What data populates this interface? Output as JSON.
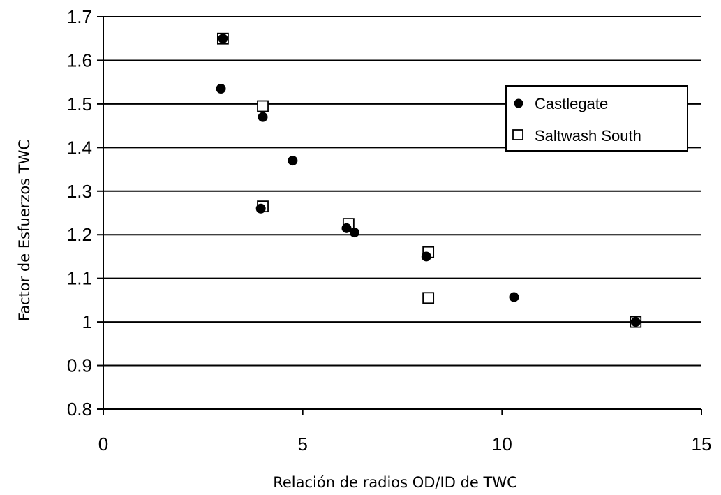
{
  "chart_data": {
    "type": "scatter",
    "title": "",
    "xlabel": "Relación de radios OD/ID de TWC",
    "ylabel": "Factor de Esfuerzos TWC",
    "xlim": [
      0,
      15
    ],
    "ylim": [
      0.8,
      1.7
    ],
    "x_ticks": [
      0,
      5,
      10,
      15
    ],
    "x_tick_labels": [
      "0",
      "5",
      "10",
      "15"
    ],
    "y_ticks": [
      0.8,
      0.9,
      1.0,
      1.1,
      1.2,
      1.3,
      1.4,
      1.5,
      1.6,
      1.7
    ],
    "y_tick_labels": [
      "0.8",
      "0.9",
      "1",
      "1.1",
      "1.2",
      "1.3",
      "1.4",
      "1.5",
      "1.6",
      "1.7"
    ],
    "grid": "horizontal",
    "legend_position": "right",
    "series": [
      {
        "name": "Castlegate",
        "marker": "filled-circle",
        "color": "#000000",
        "points": [
          {
            "x": 3.0,
            "y": 1.65
          },
          {
            "x": 2.95,
            "y": 1.535
          },
          {
            "x": 4.0,
            "y": 1.47
          },
          {
            "x": 4.75,
            "y": 1.37
          },
          {
            "x": 3.95,
            "y": 1.26
          },
          {
            "x": 6.1,
            "y": 1.215
          },
          {
            "x": 6.3,
            "y": 1.205
          },
          {
            "x": 8.1,
            "y": 1.15
          },
          {
            "x": 10.3,
            "y": 1.057
          },
          {
            "x": 13.35,
            "y": 1.0
          }
        ]
      },
      {
        "name": "Saltwash South",
        "marker": "open-square",
        "color": "#000000",
        "points": [
          {
            "x": 3.0,
            "y": 1.65
          },
          {
            "x": 4.0,
            "y": 1.495
          },
          {
            "x": 4.0,
            "y": 1.265
          },
          {
            "x": 6.15,
            "y": 1.225
          },
          {
            "x": 8.15,
            "y": 1.16
          },
          {
            "x": 8.15,
            "y": 1.055
          },
          {
            "x": 13.35,
            "y": 1.0
          }
        ]
      }
    ]
  }
}
